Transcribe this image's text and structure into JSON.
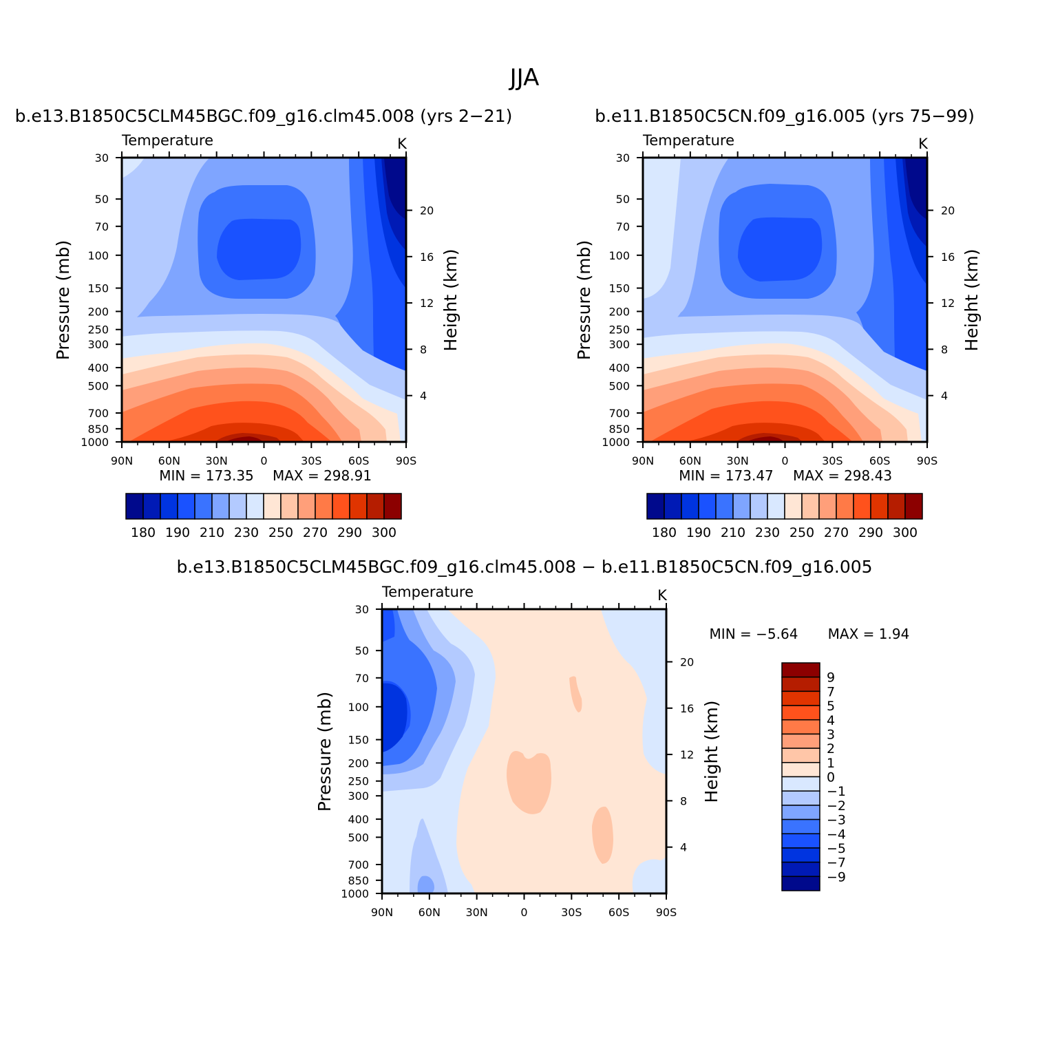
{
  "chart_data": {
    "type": "contour",
    "suptitle": "JJA",
    "panels": [
      {
        "id": "p1",
        "title": "b.e13.B1850C5CLM45BGC.f09_g16.clm45.008 (yrs 2−21)",
        "variable": "Temperature",
        "units": "K",
        "ylabel": "Pressure (mb)",
        "y2label": "Height (km)",
        "xticks": [
          "90N",
          "60N",
          "30N",
          "0",
          "30S",
          "60S",
          "90S"
        ],
        "yticks": [
          "30",
          "50",
          "70",
          "100",
          "150",
          "200",
          "250",
          "300",
          "400",
          "500",
          "700",
          "850",
          "1000"
        ],
        "y2ticks": [
          "20",
          "16",
          "12",
          "8",
          "4"
        ],
        "min_text": "MIN = 173.35",
        "max_text": "MAX = 298.91",
        "min": 173.35,
        "max": 298.91,
        "levels": [
          180,
          190,
          200,
          210,
          220,
          230,
          240,
          250,
          260,
          270,
          280,
          290,
          300
        ]
      },
      {
        "id": "p2",
        "title": "b.e11.B1850C5CN.f09_g16.005 (yrs 75−99)",
        "variable": "Temperature",
        "units": "K",
        "ylabel": "Pressure (mb)",
        "y2label": "Height (km)",
        "xticks": [
          "90N",
          "60N",
          "30N",
          "0",
          "30S",
          "60S",
          "90S"
        ],
        "yticks": [
          "30",
          "50",
          "70",
          "100",
          "150",
          "200",
          "250",
          "300",
          "400",
          "500",
          "700",
          "850",
          "1000"
        ],
        "y2ticks": [
          "20",
          "16",
          "12",
          "8",
          "4"
        ],
        "min_text": "MIN = 173.47",
        "max_text": "MAX = 298.43",
        "min": 173.47,
        "max": 298.43,
        "levels": [
          180,
          190,
          200,
          210,
          220,
          230,
          240,
          250,
          260,
          270,
          280,
          290,
          300
        ]
      },
      {
        "id": "p3",
        "title": "b.e13.B1850C5CLM45BGC.f09_g16.clm45.008 − b.e11.B1850C5CN.f09_g16.005",
        "variable": "Temperature",
        "units": "K",
        "ylabel": "Pressure (mb)",
        "y2label": "Height (km)",
        "xticks": [
          "90N",
          "60N",
          "30N",
          "0",
          "30S",
          "60S",
          "90S"
        ],
        "yticks": [
          "30",
          "50",
          "70",
          "100",
          "150",
          "200",
          "250",
          "300",
          "400",
          "500",
          "700",
          "850",
          "1000"
        ],
        "y2ticks": [
          "20",
          "16",
          "12",
          "8",
          "4"
        ],
        "min_text": "MIN =    −5.64",
        "max_text": "MAX =    1.94",
        "min": -5.64,
        "max": 1.94,
        "levels": [
          -9,
          -7,
          -5,
          -4,
          -3,
          -2,
          -1,
          0,
          1,
          2,
          3,
          4,
          5,
          7,
          9
        ]
      }
    ],
    "colorbar_abs": {
      "labels": [
        "180",
        "190",
        "210",
        "230",
        "250",
        "270",
        "290",
        "300"
      ],
      "colors": [
        "#00098c",
        "#001ab5",
        "#0034e0",
        "#1a52ff",
        "#3a73ff",
        "#7fa5ff",
        "#b3caff",
        "#d9e8ff",
        "#ffe6d5",
        "#ffc6a8",
        "#ff9f7a",
        "#ff7a47",
        "#ff521c",
        "#e03400",
        "#b51d00",
        "#8c0000"
      ]
    },
    "colorbar_diff": {
      "labels": [
        "9",
        "7",
        "5",
        "4",
        "3",
        "2",
        "1",
        "0",
        "−1",
        "−2",
        "−3",
        "−4",
        "−5",
        "−7",
        "−9"
      ],
      "colors": [
        "#8c0000",
        "#b51d00",
        "#e03400",
        "#ff521c",
        "#ff7a47",
        "#ff9f7a",
        "#ffc6a8",
        "#ffe6d5",
        "#d9e8ff",
        "#b3caff",
        "#7fa5ff",
        "#3a73ff",
        "#1a52ff",
        "#0034e0",
        "#001ab5",
        "#00098c"
      ]
    }
  }
}
